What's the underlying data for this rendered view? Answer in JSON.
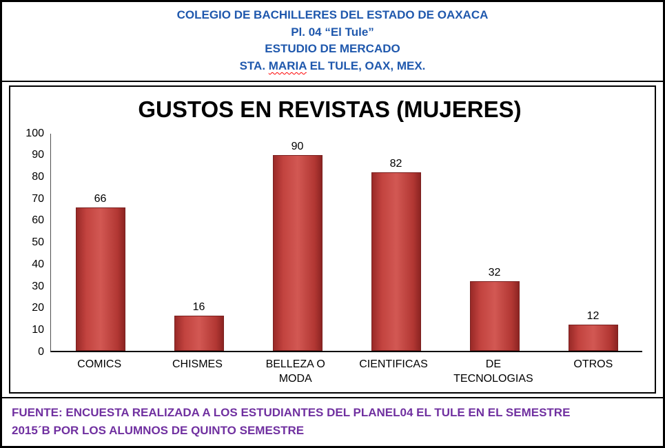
{
  "header": {
    "line1": "COLEGIO DE BACHILLERES DEL ESTADO DE OAXACA",
    "line2": "Pl. 04 “El Tule”",
    "line3": "ESTUDIO DE MERCADO",
    "line4_prefix": "STA. ",
    "line4_misspelled": "MARIA",
    "line4_suffix": " EL TULE, OAX, MEX.",
    "text_color": "#1f58ad"
  },
  "chart_data": {
    "type": "bar",
    "title": "GUSTOS EN REVISTAS (MUJERES)",
    "categories": [
      "COMICS",
      "CHISMES",
      "BELLEZA O MODA",
      "CIENTIFICAS",
      "DE TECNOLOGIAS",
      "OTROS"
    ],
    "values": [
      66,
      16,
      90,
      82,
      32,
      12
    ],
    "xlabel": "",
    "ylabel": "",
    "ylim": [
      0,
      100
    ],
    "ytick_step": 10,
    "grid": false,
    "legend": "none",
    "bar_color": "#c0413f",
    "bar_border_color": "#7a201f"
  },
  "footer": {
    "line1": "FUENTE: ENCUESTA REALIZADA A LOS ESTUDIANTES DEL PLANEL04 EL TULE EN EL SEMESTRE",
    "line2": "2015´B POR LOS ALUMNOS DE QUINTO SEMESTRE",
    "text_color": "#7030a0"
  }
}
